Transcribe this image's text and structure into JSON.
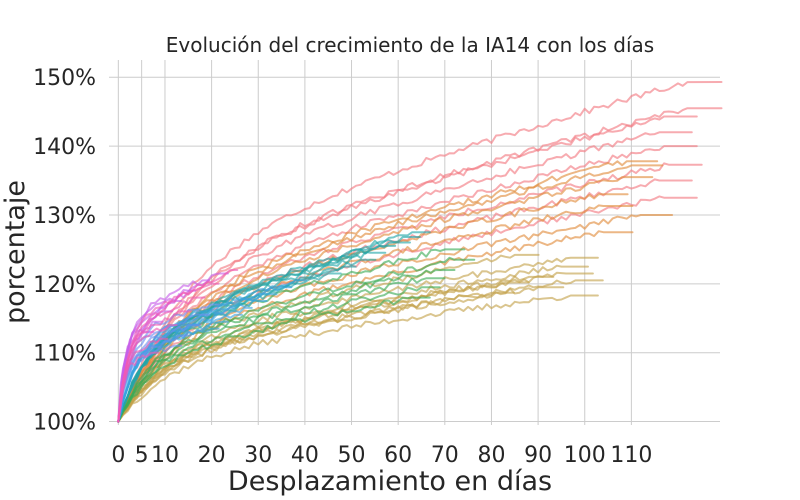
{
  "chart_data": {
    "type": "line",
    "title": "Evolución del crecimiento de la IA14 con los días",
    "xlabel": "Desplazamiento en días",
    "ylabel": "porcentaje",
    "x_ticks": [
      "0",
      "5",
      "10",
      "20",
      "30",
      "40",
      "50",
      "60",
      "70",
      "80",
      "90",
      "100",
      "110"
    ],
    "x_tick_values": [
      0,
      5,
      10,
      20,
      30,
      40,
      50,
      60,
      70,
      80,
      90,
      100,
      110
    ],
    "y_ticks": [
      "100%",
      "110%",
      "120%",
      "130%",
      "140%",
      "150%"
    ],
    "y_tick_values": [
      100,
      110,
      120,
      130,
      140,
      150
    ],
    "xlim": [
      -2,
      129
    ],
    "ylim": [
      99.5,
      152.5
    ],
    "grid": true,
    "legend": "none",
    "groups": [
      {
        "color": "#f2777f",
        "curves": [
          {
            "end": 122,
            "final": 149.3
          },
          {
            "end": 122,
            "final": 145.5
          },
          {
            "end": 117,
            "final": 144.3
          },
          {
            "end": 116,
            "final": 142.0
          },
          {
            "end": 117,
            "final": 140.0
          },
          {
            "end": 118,
            "final": 137.3
          },
          {
            "end": 116,
            "final": 135.0
          },
          {
            "end": 117,
            "final": 132.5
          }
        ]
      },
      {
        "color": "#e08a3a",
        "curves": [
          {
            "end": 109,
            "final": 137.8
          },
          {
            "end": 110,
            "final": 137.2
          },
          {
            "end": 108,
            "final": 135.5
          },
          {
            "end": 103,
            "final": 133.0
          },
          {
            "end": 104,
            "final": 131.3
          },
          {
            "end": 112,
            "final": 130.0
          },
          {
            "end": 104,
            "final": 127.5
          }
        ]
      },
      {
        "color": "#c4a24a",
        "curves": [
          {
            "end": 97,
            "final": 123.8
          },
          {
            "end": 95,
            "final": 122.5
          },
          {
            "end": 96,
            "final": 121.5
          },
          {
            "end": 98,
            "final": 120.5
          },
          {
            "end": 90,
            "final": 119.5
          },
          {
            "end": 97,
            "final": 118.3
          },
          {
            "end": 85,
            "final": 124.2
          },
          {
            "end": 88,
            "final": 121.0
          },
          {
            "end": 83,
            "final": 120.2
          },
          {
            "end": 80,
            "final": 118.7
          }
        ]
      },
      {
        "color": "#3aab55",
        "curves": [
          {
            "end": 70,
            "final": 125.0
          },
          {
            "end": 72,
            "final": 123.5
          },
          {
            "end": 68,
            "final": 122.0
          },
          {
            "end": 66,
            "final": 120.8
          },
          {
            "end": 65,
            "final": 119.5
          },
          {
            "end": 63,
            "final": 118.0
          }
        ]
      },
      {
        "color": "#22a6a8",
        "curves": [
          {
            "end": 63,
            "final": 127.5
          },
          {
            "end": 61,
            "final": 126.8
          },
          {
            "end": 59,
            "final": 126.0
          },
          {
            "end": 56,
            "final": 125.5
          },
          {
            "end": 54,
            "final": 124.5
          },
          {
            "end": 52,
            "final": 123.5
          },
          {
            "end": 48,
            "final": 122.5
          },
          {
            "end": 45,
            "final": 121.5
          }
        ]
      },
      {
        "color": "#38a3e0",
        "curves": [
          {
            "end": 38,
            "final": 120.5
          },
          {
            "end": 35,
            "final": 119.5
          },
          {
            "end": 32,
            "final": 118.5
          },
          {
            "end": 30,
            "final": 117.5
          },
          {
            "end": 27,
            "final": 116.5
          },
          {
            "end": 25,
            "final": 115.5
          },
          {
            "end": 22,
            "final": 114.5
          },
          {
            "end": 20,
            "final": 113.5
          }
        ]
      },
      {
        "color": "#6b8ef0",
        "curves": [
          {
            "end": 20,
            "final": 117.0
          },
          {
            "end": 18,
            "final": 115.5
          },
          {
            "end": 16,
            "final": 114.0
          },
          {
            "end": 14,
            "final": 112.5
          },
          {
            "end": 12,
            "final": 111.0
          }
        ]
      },
      {
        "color": "#c65ee8",
        "curves": [
          {
            "end": 22,
            "final": 121.5
          },
          {
            "end": 18,
            "final": 120.5
          },
          {
            "end": 15,
            "final": 119.0
          },
          {
            "end": 12,
            "final": 117.5
          },
          {
            "end": 10,
            "final": 116.0
          },
          {
            "end": 8,
            "final": 114.5
          },
          {
            "end": 6,
            "final": 113.0
          }
        ]
      },
      {
        "color": "#ef5ab4",
        "curves": [
          {
            "end": 24,
            "final": 122.0
          },
          {
            "end": 20,
            "final": 120.0
          },
          {
            "end": 17,
            "final": 118.0
          },
          {
            "end": 14,
            "final": 116.0
          },
          {
            "end": 11,
            "final": 114.0
          },
          {
            "end": 9,
            "final": 112.0
          },
          {
            "end": 7,
            "final": 110.0
          }
        ]
      }
    ]
  }
}
